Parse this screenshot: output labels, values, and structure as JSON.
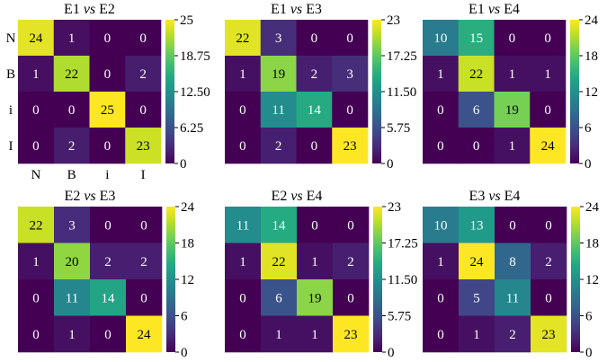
{
  "chart_data": [
    {
      "type": "heatmap",
      "title": "E1 vs E2",
      "title_parts": [
        "E1",
        "vs",
        "E2"
      ],
      "row_labels": [
        "N",
        "B",
        "i",
        "I"
      ],
      "col_labels": [
        "N",
        "B",
        "i",
        "I"
      ],
      "values": [
        [
          24,
          1,
          0,
          0
        ],
        [
          1,
          22,
          0,
          2
        ],
        [
          0,
          0,
          25,
          0
        ],
        [
          0,
          2,
          0,
          23
        ]
      ],
      "vmin": 0,
      "vmax": 25,
      "colorbar_ticks": [
        "25",
        "18.75",
        "12.50",
        "6.25",
        "0"
      ]
    },
    {
      "type": "heatmap",
      "title": "E1 vs E3",
      "title_parts": [
        "E1",
        "vs",
        "E3"
      ],
      "row_labels": [],
      "col_labels": [],
      "values": [
        [
          22,
          3,
          0,
          0
        ],
        [
          1,
          19,
          2,
          3
        ],
        [
          0,
          11,
          14,
          0
        ],
        [
          0,
          2,
          0,
          23
        ]
      ],
      "vmin": 0,
      "vmax": 23,
      "colorbar_ticks": [
        "23",
        "17.25",
        "11.50",
        "5.75",
        "0"
      ]
    },
    {
      "type": "heatmap",
      "title": "E1 vs E4",
      "title_parts": [
        "E1",
        "vs",
        "E4"
      ],
      "row_labels": [],
      "col_labels": [],
      "values": [
        [
          10,
          15,
          0,
          0
        ],
        [
          1,
          22,
          1,
          1
        ],
        [
          0,
          6,
          19,
          0
        ],
        [
          0,
          0,
          1,
          24
        ]
      ],
      "vmin": 0,
      "vmax": 24,
      "colorbar_ticks": [
        "24",
        "18",
        "12",
        "6",
        "0"
      ]
    },
    {
      "type": "heatmap",
      "title": "E2 vs E3",
      "title_parts": [
        "E2",
        "vs",
        "E3"
      ],
      "row_labels": [],
      "col_labels": [],
      "values": [
        [
          22,
          3,
          0,
          0
        ],
        [
          1,
          20,
          2,
          2
        ],
        [
          0,
          11,
          14,
          0
        ],
        [
          0,
          1,
          0,
          24
        ]
      ],
      "vmin": 0,
      "vmax": 24,
      "colorbar_ticks": [
        "24",
        "18",
        "12",
        "6",
        "0"
      ]
    },
    {
      "type": "heatmap",
      "title": "E2 vs E4",
      "title_parts": [
        "E2",
        "vs",
        "E4"
      ],
      "row_labels": [],
      "col_labels": [],
      "values": [
        [
          11,
          14,
          0,
          0
        ],
        [
          1,
          22,
          1,
          2
        ],
        [
          0,
          6,
          19,
          0
        ],
        [
          0,
          1,
          1,
          23
        ]
      ],
      "vmin": 0,
      "vmax": 23,
      "colorbar_ticks": [
        "23",
        "17.25",
        "11.50",
        "5.75",
        "0"
      ]
    },
    {
      "type": "heatmap",
      "title": "E3 vs E4",
      "title_parts": [
        "E3",
        "vs",
        "E4"
      ],
      "row_labels": [],
      "col_labels": [],
      "values": [
        [
          10,
          13,
          0,
          0
        ],
        [
          1,
          24,
          8,
          2
        ],
        [
          0,
          5,
          11,
          0
        ],
        [
          0,
          1,
          2,
          23
        ]
      ],
      "vmin": 0,
      "vmax": 24,
      "colorbar_ticks": [
        "24",
        "18",
        "12",
        "6",
        "0"
      ]
    }
  ],
  "colormap": "viridis"
}
